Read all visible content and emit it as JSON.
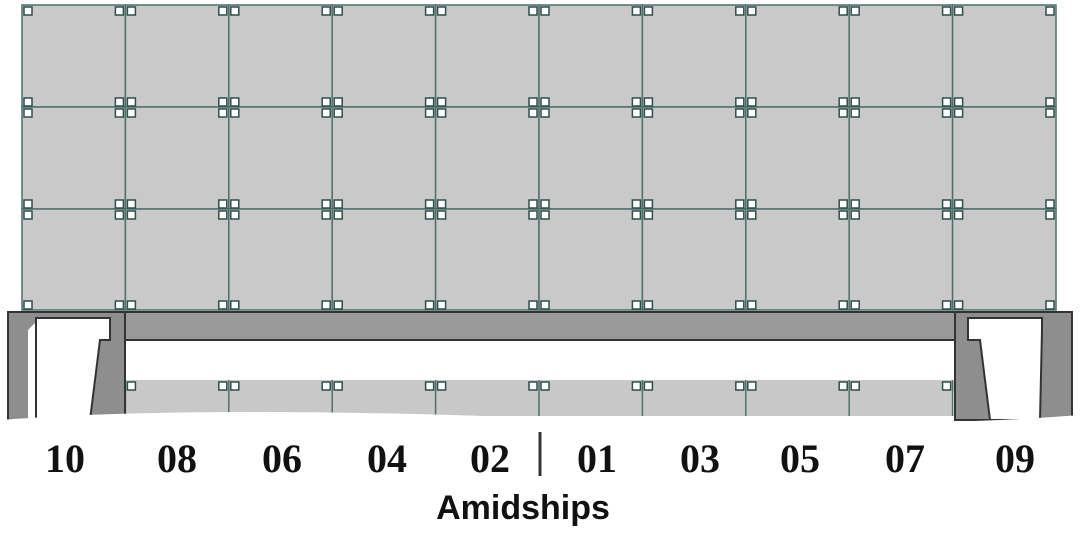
{
  "rows": {
    "labels": [
      "10",
      "08",
      "06",
      "04",
      "02",
      "01",
      "03",
      "05",
      "07",
      "09"
    ]
  },
  "caption": "Amidships"
}
